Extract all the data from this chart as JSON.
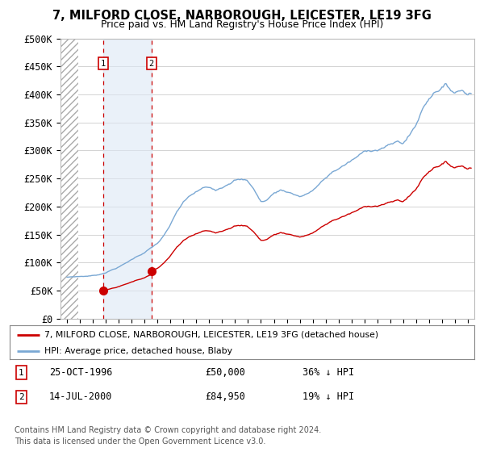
{
  "title": "7, MILFORD CLOSE, NARBOROUGH, LEICESTER, LE19 3FG",
  "subtitle": "Price paid vs. HM Land Registry's House Price Index (HPI)",
  "legend_line1": "7, MILFORD CLOSE, NARBOROUGH, LEICESTER, LE19 3FG (detached house)",
  "legend_line2": "HPI: Average price, detached house, Blaby",
  "footer1": "Contains HM Land Registry data © Crown copyright and database right 2024.",
  "footer2": "This data is licensed under the Open Government Licence v3.0.",
  "sale1_date": "25-OCT-1996",
  "sale1_price": 50000,
  "sale1_hpi": "36% ↓ HPI",
  "sale2_date": "14-JUL-2000",
  "sale2_price": 84950,
  "sale2_hpi": "19% ↓ HPI",
  "sale1_x": 1996.82,
  "sale2_x": 2000.54,
  "property_color": "#cc0000",
  "hpi_color": "#7aa8d4",
  "hatch_color": "#dde8f5",
  "shade_color": "#dde8f5",
  "ylim": [
    0,
    500000
  ],
  "xlim": [
    1993.5,
    2025.5
  ],
  "yticks": [
    0,
    50000,
    100000,
    150000,
    200000,
    250000,
    300000,
    350000,
    400000,
    450000,
    500000
  ],
  "ytick_labels": [
    "£0",
    "£50K",
    "£100K",
    "£150K",
    "£200K",
    "£250K",
    "£300K",
    "£350K",
    "£400K",
    "£450K",
    "£500K"
  ],
  "xticks": [
    1994,
    1995,
    1996,
    1997,
    1998,
    1999,
    2000,
    2001,
    2002,
    2003,
    2004,
    2005,
    2006,
    2007,
    2008,
    2009,
    2010,
    2011,
    2012,
    2013,
    2014,
    2015,
    2016,
    2017,
    2018,
    2019,
    2020,
    2021,
    2022,
    2023,
    2024,
    2025
  ],
  "hatch_end_x": 1994.9,
  "shade_start_x": 1996.82,
  "shade_end_x": 2000.54
}
